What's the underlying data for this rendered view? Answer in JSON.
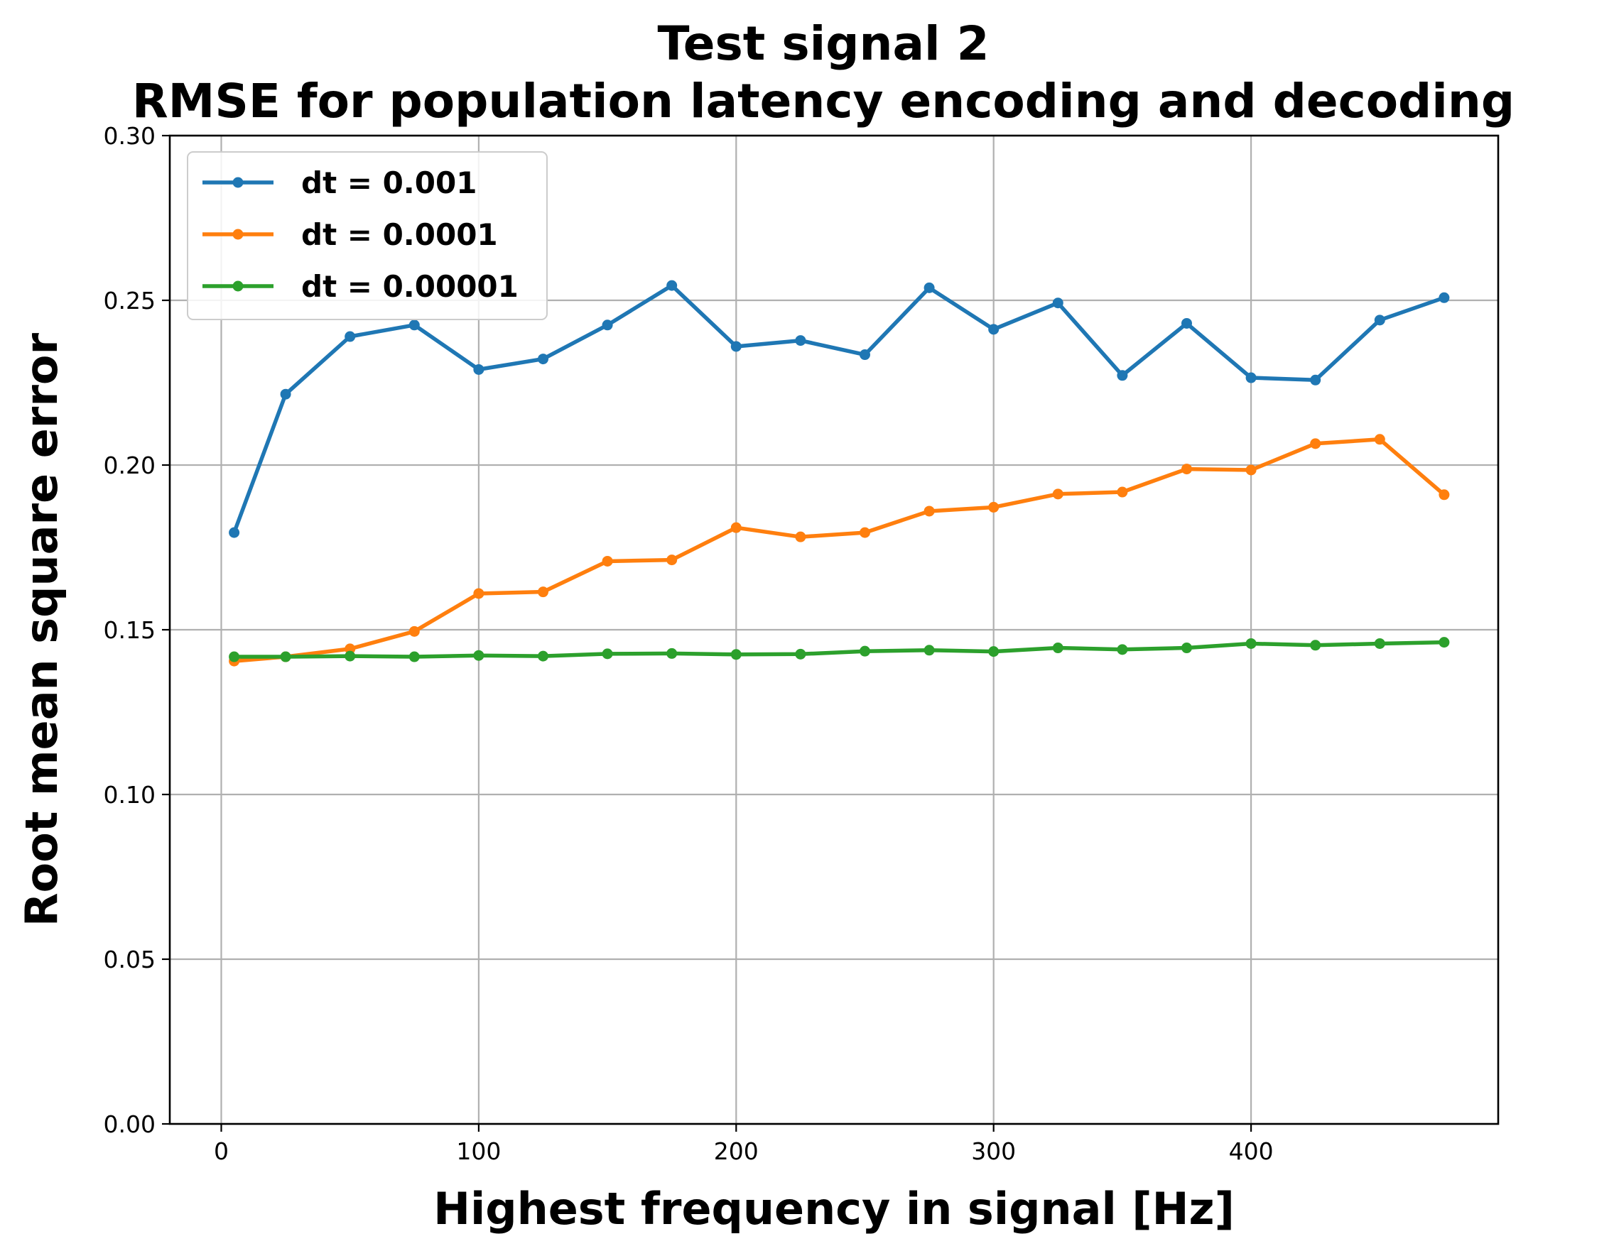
{
  "chart_data": {
    "type": "line",
    "title": "Test signal 2",
    "subtitle": "RMSE for population latency encoding and decoding",
    "xlabel": "Highest frequency in signal [Hz]",
    "ylabel": "Root mean square error",
    "xlim": [
      -20,
      496
    ],
    "ylim": [
      0,
      0.3
    ],
    "xticks": [
      0,
      100,
      200,
      300,
      400
    ],
    "xtick_labels": [
      "0",
      "100",
      "200",
      "300",
      "400"
    ],
    "yticks": [
      0,
      0.05,
      0.1,
      0.15,
      0.2,
      0.25,
      0.3
    ],
    "ytick_labels": [
      "0.00",
      "0.05",
      "0.10",
      "0.15",
      "0.20",
      "0.25",
      "0.30"
    ],
    "grid": true,
    "legend_position": "top-left",
    "x": [
      5,
      25,
      50,
      75,
      100,
      125,
      150,
      175,
      200,
      225,
      250,
      275,
      300,
      325,
      350,
      375,
      400,
      425,
      450,
      475
    ],
    "series": [
      {
        "name": "dt = 0.001",
        "color": "#1f77b4",
        "values": [
          0.1795,
          0.2215,
          0.239,
          0.2425,
          0.229,
          0.2322,
          0.2425,
          0.2545,
          0.236,
          0.2378,
          0.2335,
          0.2538,
          0.2412,
          0.2492,
          0.2272,
          0.243,
          0.2265,
          0.2258,
          0.244,
          0.2508
        ]
      },
      {
        "name": "dt = 0.0001",
        "color": "#ff7f0e",
        "values": [
          0.1405,
          0.1418,
          0.1442,
          0.1495,
          0.161,
          0.1615,
          0.1708,
          0.1712,
          0.181,
          0.1782,
          0.1795,
          0.186,
          0.1872,
          0.1912,
          0.1918,
          0.1988,
          0.1985,
          0.2065,
          0.2078,
          0.191
        ]
      },
      {
        "name": "dt = 0.00001",
        "color": "#2ca02c",
        "values": [
          0.1418,
          0.1418,
          0.142,
          0.1418,
          0.1422,
          0.142,
          0.1427,
          0.1428,
          0.1425,
          0.1426,
          0.1435,
          0.1438,
          0.1434,
          0.1445,
          0.144,
          0.1445,
          0.1458,
          0.1453,
          0.1458,
          0.1462
        ]
      }
    ]
  }
}
